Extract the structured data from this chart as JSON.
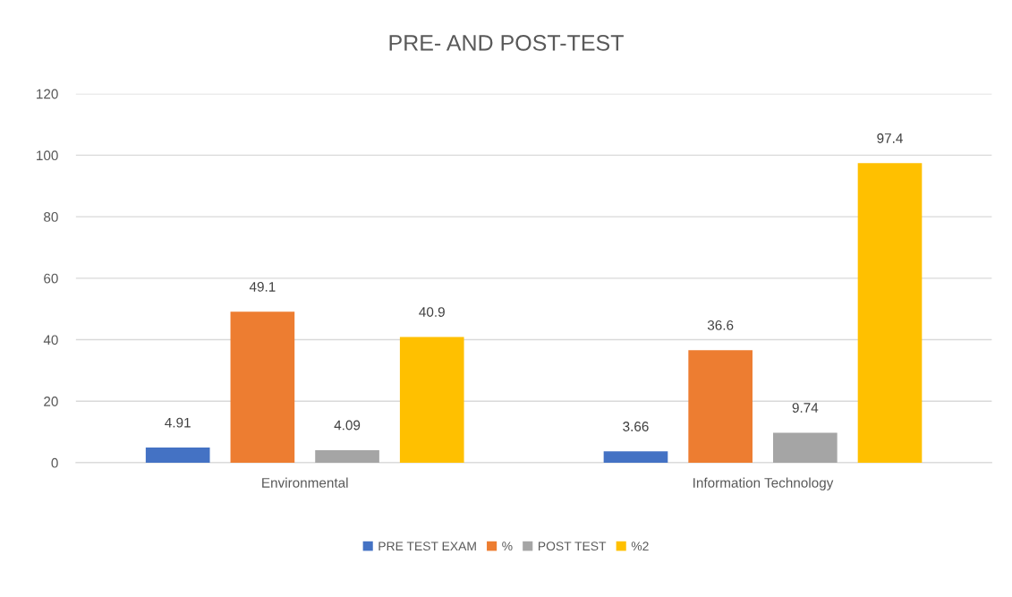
{
  "chart_data": {
    "type": "bar",
    "title": "PRE- AND POST-TEST",
    "categories": [
      "Environmental",
      "Information Technology"
    ],
    "series": [
      {
        "name": "PRE TEST EXAM",
        "color": "#4472c4",
        "values": [
          4.91,
          3.66
        ]
      },
      {
        "name": "%",
        "color": "#ed7d31",
        "values": [
          49.1,
          36.6
        ]
      },
      {
        "name": "POST TEST",
        "color": "#a5a5a5",
        "values": [
          4.09,
          9.74
        ]
      },
      {
        "name": "%2",
        "color": "#ffc000",
        "values": [
          40.9,
          97.4
        ]
      }
    ],
    "ylim": [
      0,
      120
    ],
    "yticks": [
      0,
      20,
      40,
      60,
      80,
      100,
      120
    ],
    "grid": "y",
    "legend": "bottom",
    "data_labels": true
  }
}
